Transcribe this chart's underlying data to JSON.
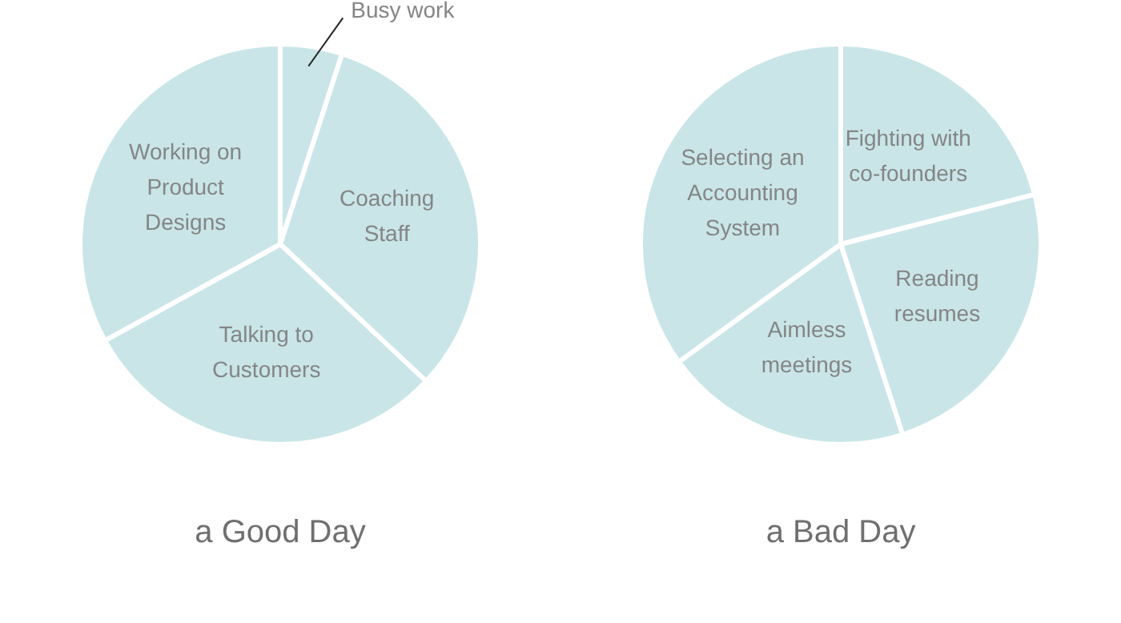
{
  "chart_data": [
    {
      "type": "pie",
      "title": "a Good Day",
      "categories": [
        "Busy work",
        "Coaching Staff",
        "Talking to Customers",
        "Working on Product Designs"
      ],
      "values": [
        5,
        32,
        30,
        33
      ],
      "colors": [
        "#c9e5e8",
        "#c9e5e8",
        "#c9e5e8",
        "#c9e5e8"
      ],
      "legend": false
    },
    {
      "type": "pie",
      "title": "a Bad Day",
      "categories": [
        "Fighting with co-founders",
        "Reading resumes",
        "Aimless meetings",
        "Selecting an Accounting System"
      ],
      "values": [
        21,
        24,
        20,
        35
      ],
      "colors": [
        "#c9e5e8",
        "#c9e5e8",
        "#c9e5e8",
        "#c9e5e8"
      ],
      "legend": false
    }
  ]
}
